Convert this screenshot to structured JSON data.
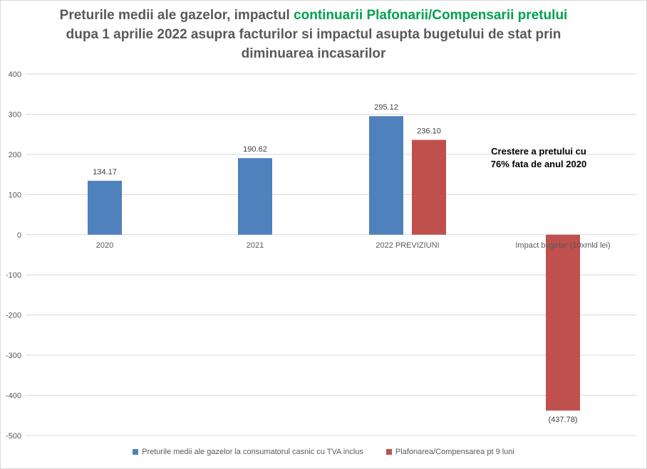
{
  "title": {
    "part1": "Preturile medii ale gazelor, impactul ",
    "highlight": "continuarii Plafonarii/Compensarii pretului",
    "part2": "dupa 1 aprilie 2022 asupra facturilor si impactul asupta bugetului de stat prin diminuarea incasarilor"
  },
  "annotation": "Crestere a pretului cu 76% fata de anul 2020",
  "colors": {
    "series1": "#4f81bd",
    "series2": "#c0504d",
    "highlight": "#00a050",
    "grid": "#d9d9d9",
    "text": "#595959"
  },
  "chart_data": {
    "type": "bar",
    "categories": [
      "2020",
      "2021",
      "2022 PREVIZIUNI",
      "Impact bugetar (10xmld lei)"
    ],
    "series": [
      {
        "name": "Preturile medii ale gazelor la consumatorul casnic cu TVA inclus",
        "values": [
          134.17,
          190.62,
          295.12,
          null
        ]
      },
      {
        "name": "Plafonarea/Compensarea pt 9 luni",
        "values": [
          null,
          null,
          236.1,
          -437.78
        ]
      }
    ],
    "data_labels": [
      [
        "134.17",
        "190.62",
        "295.12",
        ""
      ],
      [
        "",
        "",
        "236.10",
        "(437.78)"
      ]
    ],
    "y_ticks": [
      "400",
      "300",
      "200",
      "100",
      "0",
      "-100",
      "-200",
      "-300",
      "-400",
      "-500"
    ],
    "ylim": [
      -500,
      400
    ],
    "grid": true,
    "legend_position": "bottom"
  }
}
